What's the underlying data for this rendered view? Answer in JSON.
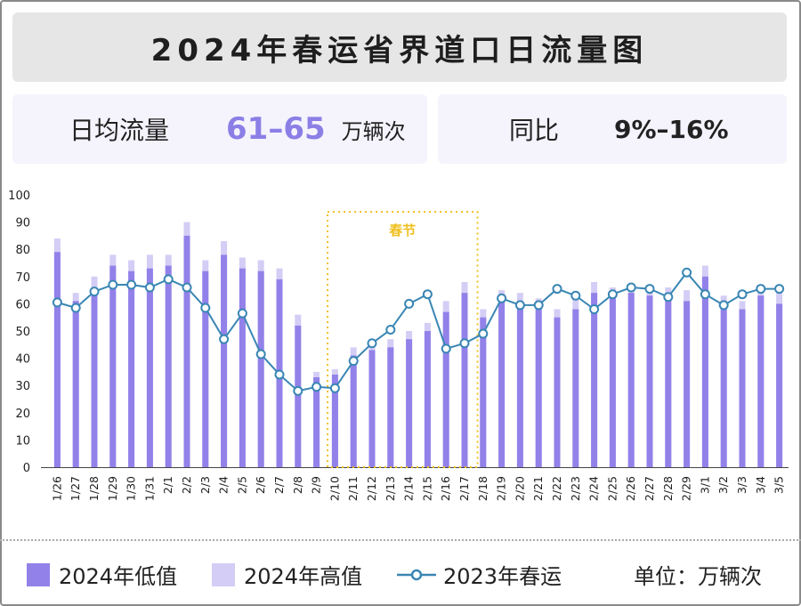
{
  "title": "2024年春运省界道口日流量图",
  "stats": {
    "avg_label": "日均流量",
    "avg_value": "61–65",
    "avg_unit": "万辆次",
    "yoy_label": "同比",
    "yoy_value": "9%–16%"
  },
  "colors": {
    "low": "#9281e9",
    "high": "#d4cdf5",
    "line": "#3a86b4",
    "highlight": "#f0c020"
  },
  "legend": {
    "low": "2024年低值",
    "high": "2024年高值",
    "line": "2023年春运",
    "unit": "单位：万辆次"
  },
  "chart_data": {
    "type": "bar",
    "categories": [
      "1/26",
      "1/27",
      "1/28",
      "1/29",
      "1/30",
      "1/31",
      "2/1",
      "2/2",
      "2/3",
      "2/4",
      "2/5",
      "2/6",
      "2/7",
      "2/8",
      "2/9",
      "2/10",
      "2/11",
      "2/12",
      "2/13",
      "2/14",
      "2/15",
      "2/16",
      "2/17",
      "2/18",
      "2/19",
      "2/20",
      "2/21",
      "2/22",
      "2/23",
      "2/24",
      "2/25",
      "2/26",
      "2/27",
      "2/28",
      "2/29",
      "3/1",
      "3/2",
      "3/3",
      "3/4",
      "3/5"
    ],
    "series": [
      {
        "name": "2024年低值",
        "type": "bar",
        "values": [
          79,
          61,
          66,
          74,
          72,
          73,
          74,
          85,
          72,
          78,
          73,
          72,
          69,
          52,
          33,
          34,
          41,
          43,
          44,
          47,
          50,
          57,
          64,
          55,
          62,
          60,
          58,
          55,
          58,
          64,
          62,
          64,
          63,
          63,
          61,
          70,
          60,
          58,
          63,
          60
        ]
      },
      {
        "name": "2024年高值",
        "type": "bar",
        "values": [
          84,
          64,
          70,
          78,
          76,
          78,
          78,
          90,
          76,
          83,
          77,
          76,
          73,
          56,
          35,
          36,
          44,
          46,
          47,
          50,
          53,
          61,
          68,
          58,
          65,
          64,
          62,
          58,
          62,
          68,
          66,
          66,
          65,
          66,
          65,
          74,
          63,
          61,
          66,
          65
        ]
      },
      {
        "name": "2023年春运",
        "type": "line",
        "values": [
          60.5,
          58.5,
          64.5,
          67,
          67,
          66,
          69,
          66,
          58.5,
          47,
          56.5,
          41.5,
          34,
          28,
          29.5,
          29,
          39,
          45.5,
          50.5,
          60,
          63.5,
          43.5,
          45.5,
          49,
          62,
          59.5,
          59.5,
          65.5,
          63,
          58,
          63.5,
          66,
          65.5,
          62.5,
          71.5,
          63.5,
          59.5,
          63.5,
          65.5,
          65.5
        ]
      }
    ],
    "ylim": [
      0,
      100
    ],
    "yticks": [
      0,
      10,
      20,
      30,
      40,
      50,
      60,
      70,
      80,
      90,
      100
    ],
    "annotation": {
      "label": "春节",
      "from": "2/10",
      "to": "2/17"
    }
  }
}
